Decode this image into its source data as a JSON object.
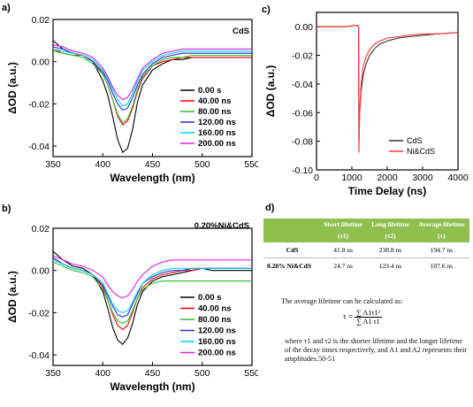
{
  "chart_data": [
    {
      "type": "line",
      "panel_label": "a)",
      "tag": "CdS",
      "xlabel": "Wavelength (nm)",
      "ylabel": "ΔOD (a.u.)",
      "xlim": [
        350,
        550
      ],
      "ylim": [
        -0.045,
        0.02
      ],
      "xticks": [
        "350",
        "400",
        "450",
        "500",
        "550"
      ],
      "yticks": [
        "0.02",
        "0.00",
        "-0.02",
        "-0.04"
      ],
      "legend_position": "right-middle",
      "series": [
        {
          "name": "0.00 s",
          "color": "#000000",
          "x": [
            350,
            360,
            370,
            380,
            390,
            400,
            405,
            410,
            415,
            420,
            425,
            430,
            435,
            440,
            450,
            460,
            470,
            480,
            490,
            500,
            510,
            520,
            530,
            540,
            550
          ],
          "y": [
            0.01,
            0.006,
            0.004,
            0.003,
            0.0,
            -0.009,
            -0.016,
            -0.026,
            -0.037,
            -0.043,
            -0.041,
            -0.032,
            -0.019,
            -0.011,
            -0.004,
            -0.001,
            0.001,
            0.001,
            0.002,
            0.002,
            0.002,
            0.002,
            0.002,
            0.002,
            0.002
          ]
        },
        {
          "name": "40.00 ns",
          "color": "#ff0000",
          "x": [
            350,
            360,
            370,
            380,
            390,
            400,
            405,
            410,
            415,
            420,
            425,
            430,
            435,
            440,
            450,
            460,
            470,
            480,
            490,
            500,
            510,
            520,
            530,
            540,
            550
          ],
          "y": [
            0.006,
            0.004,
            0.003,
            0.003,
            0.0,
            -0.006,
            -0.011,
            -0.018,
            -0.026,
            -0.03,
            -0.028,
            -0.022,
            -0.014,
            -0.008,
            -0.002,
            0.0,
            0.001,
            0.002,
            0.002,
            0.002,
            0.002,
            0.002,
            0.002,
            0.002,
            0.002
          ]
        },
        {
          "name": "80.00 ns",
          "color": "#2fbf2f",
          "x": [
            350,
            360,
            370,
            380,
            390,
            400,
            405,
            410,
            415,
            420,
            425,
            430,
            435,
            440,
            450,
            460,
            470,
            480,
            490,
            500,
            510,
            520,
            530,
            540,
            550
          ],
          "y": [
            0.005,
            0.004,
            0.003,
            0.002,
            -0.001,
            -0.006,
            -0.011,
            -0.018,
            -0.025,
            -0.029,
            -0.027,
            -0.021,
            -0.013,
            -0.007,
            -0.002,
            0.001,
            0.002,
            0.002,
            0.003,
            0.003,
            0.003,
            0.003,
            0.003,
            0.003,
            0.003
          ]
        },
        {
          "name": "120.00 ns",
          "color": "#2b2bd6",
          "x": [
            350,
            360,
            370,
            380,
            390,
            400,
            405,
            410,
            415,
            420,
            425,
            430,
            435,
            440,
            450,
            460,
            470,
            480,
            490,
            500,
            510,
            520,
            530,
            540,
            550
          ],
          "y": [
            0.007,
            0.006,
            0.004,
            0.003,
            0.0,
            -0.005,
            -0.009,
            -0.015,
            -0.02,
            -0.023,
            -0.022,
            -0.017,
            -0.011,
            -0.006,
            -0.001,
            0.002,
            0.003,
            0.004,
            0.004,
            0.004,
            0.004,
            0.004,
            0.004,
            0.004,
            0.004
          ]
        },
        {
          "name": "160.00 ns",
          "color": "#00d8f0",
          "x": [
            350,
            360,
            370,
            380,
            390,
            400,
            405,
            410,
            415,
            420,
            425,
            430,
            435,
            440,
            450,
            460,
            470,
            480,
            490,
            500,
            510,
            520,
            530,
            540,
            550
          ],
          "y": [
            0.006,
            0.005,
            0.004,
            0.003,
            0.001,
            -0.004,
            -0.008,
            -0.013,
            -0.018,
            -0.021,
            -0.02,
            -0.015,
            -0.009,
            -0.004,
            0.0,
            0.003,
            0.004,
            0.005,
            0.005,
            0.005,
            0.005,
            0.005,
            0.005,
            0.005,
            0.005
          ]
        },
        {
          "name": "200.00 ns",
          "color": "#e020e0",
          "x": [
            350,
            360,
            370,
            380,
            390,
            400,
            405,
            410,
            415,
            420,
            425,
            430,
            435,
            440,
            450,
            460,
            470,
            480,
            490,
            500,
            510,
            520,
            530,
            540,
            550
          ],
          "y": [
            0.008,
            0.007,
            0.005,
            0.004,
            0.002,
            -0.003,
            -0.007,
            -0.012,
            -0.016,
            -0.018,
            -0.017,
            -0.013,
            -0.008,
            -0.003,
            0.001,
            0.004,
            0.005,
            0.006,
            0.006,
            0.006,
            0.006,
            0.006,
            0.006,
            0.006,
            0.006
          ]
        }
      ]
    },
    {
      "type": "line",
      "panel_label": "b)",
      "tag": "0.20%Ni&CdS",
      "xlabel": "Wavelength (nm)",
      "ylabel": "ΔOD (a.u.)",
      "xlim": [
        350,
        550
      ],
      "ylim": [
        -0.045,
        0.02
      ],
      "xticks": [
        "350",
        "400",
        "450",
        "500",
        "550"
      ],
      "yticks": [
        "0.02",
        "0.00",
        "-0.02",
        "-0.04"
      ],
      "legend_position": "right-middle",
      "series": [
        {
          "name": "0.00 s",
          "color": "#000000",
          "x": [
            350,
            360,
            370,
            380,
            390,
            400,
            405,
            410,
            415,
            420,
            425,
            430,
            435,
            440,
            450,
            460,
            470,
            480,
            490,
            500,
            510,
            520,
            530,
            540,
            550
          ],
          "y": [
            0.009,
            0.005,
            0.002,
            0.001,
            -0.002,
            -0.01,
            -0.018,
            -0.027,
            -0.033,
            -0.035,
            -0.032,
            -0.025,
            -0.016,
            -0.01,
            -0.005,
            -0.003,
            -0.002,
            -0.001,
            0.0,
            0.001,
            0.0,
            0.0,
            0.0,
            0.0,
            0.0
          ]
        },
        {
          "name": "40.00 ns",
          "color": "#ff0000",
          "x": [
            350,
            360,
            370,
            380,
            390,
            400,
            405,
            410,
            415,
            420,
            425,
            430,
            435,
            440,
            450,
            460,
            470,
            480,
            490,
            500,
            510,
            520,
            530,
            540,
            550
          ],
          "y": [
            0.006,
            0.003,
            0.001,
            0.0,
            -0.002,
            -0.008,
            -0.014,
            -0.021,
            -0.026,
            -0.028,
            -0.026,
            -0.02,
            -0.013,
            -0.008,
            -0.004,
            -0.002,
            -0.001,
            0.0,
            0.0,
            0.001,
            0.001,
            0.001,
            0.001,
            0.001,
            0.001
          ]
        },
        {
          "name": "80.00 ns",
          "color": "#2fbf2f",
          "x": [
            350,
            360,
            370,
            380,
            390,
            400,
            405,
            410,
            415,
            420,
            425,
            430,
            435,
            440,
            450,
            460,
            470,
            480,
            490,
            500,
            510,
            520,
            530,
            540,
            550
          ],
          "y": [
            0.004,
            0.002,
            0.0,
            -0.001,
            -0.003,
            -0.009,
            -0.014,
            -0.02,
            -0.024,
            -0.025,
            -0.024,
            -0.019,
            -0.013,
            -0.009,
            -0.006,
            -0.005,
            -0.005,
            -0.005,
            -0.005,
            -0.005,
            -0.005,
            -0.005,
            -0.005,
            -0.005,
            -0.005
          ]
        },
        {
          "name": "120.00 ns",
          "color": "#2b2bd6",
          "x": [
            350,
            360,
            370,
            380,
            390,
            400,
            405,
            410,
            415,
            420,
            425,
            430,
            435,
            440,
            450,
            460,
            470,
            480,
            490,
            500,
            510,
            520,
            530,
            540,
            550
          ],
          "y": [
            0.006,
            0.003,
            0.001,
            0.0,
            -0.002,
            -0.007,
            -0.012,
            -0.017,
            -0.021,
            -0.022,
            -0.021,
            -0.016,
            -0.011,
            -0.006,
            -0.003,
            -0.001,
            0.0,
            0.0,
            0.001,
            0.001,
            0.001,
            0.001,
            0.001,
            0.001,
            0.001
          ]
        },
        {
          "name": "160.00 ns",
          "color": "#00d8f0",
          "x": [
            350,
            360,
            370,
            380,
            390,
            400,
            405,
            410,
            415,
            420,
            425,
            430,
            435,
            440,
            450,
            460,
            470,
            480,
            490,
            500,
            510,
            520,
            530,
            540,
            550
          ],
          "y": [
            0.005,
            0.003,
            0.001,
            0.0,
            -0.002,
            -0.006,
            -0.011,
            -0.016,
            -0.019,
            -0.02,
            -0.019,
            -0.015,
            -0.01,
            -0.006,
            -0.002,
            0.0,
            0.001,
            0.001,
            0.001,
            0.001,
            0.001,
            0.001,
            0.001,
            0.001,
            0.001
          ]
        },
        {
          "name": "200.00 ns",
          "color": "#e020e0",
          "x": [
            350,
            360,
            370,
            380,
            390,
            400,
            405,
            410,
            415,
            420,
            425,
            430,
            435,
            440,
            450,
            460,
            470,
            480,
            490,
            500,
            510,
            520,
            530,
            540,
            550
          ],
          "y": [
            0.007,
            0.005,
            0.003,
            0.002,
            0.0,
            -0.003,
            -0.007,
            -0.01,
            -0.012,
            -0.013,
            -0.012,
            -0.009,
            -0.005,
            -0.002,
            0.002,
            0.004,
            0.005,
            0.005,
            0.005,
            0.005,
            0.005,
            0.005,
            0.005,
            0.005,
            0.005
          ]
        }
      ]
    },
    {
      "type": "line",
      "panel_label": "c)",
      "xlabel": "Time Delay (ns)",
      "ylabel": "ΔOD (a.u.)",
      "xlim": [
        0,
        4000
      ],
      "ylim": [
        -0.1,
        0.01
      ],
      "xticks": [
        "0",
        "1000",
        "2000",
        "3000",
        "4000"
      ],
      "yticks": [
        "0.00",
        "-0.02",
        "-0.04",
        "-0.06",
        "-0.08",
        "-0.10"
      ],
      "legend_position": "bottom-right",
      "series": [
        {
          "name": "CdS",
          "color": "#333333",
          "x": [
            0,
            400,
            800,
            1150,
            1190,
            1200,
            1220,
            1260,
            1320,
            1400,
            1500,
            1650,
            1800,
            2000,
            2300,
            2600,
            3000,
            3400,
            4000
          ],
          "y": [
            0.0,
            0.0,
            0.0,
            0.001,
            0.0,
            -0.08,
            -0.06,
            -0.045,
            -0.034,
            -0.026,
            -0.02,
            -0.015,
            -0.012,
            -0.01,
            -0.008,
            -0.007,
            -0.006,
            -0.005,
            -0.004
          ]
        },
        {
          "name": "Ni&CdS",
          "color": "#ff3333",
          "x": [
            0,
            400,
            800,
            1150,
            1190,
            1200,
            1220,
            1260,
            1320,
            1400,
            1500,
            1650,
            1800,
            2000,
            2300,
            2600,
            3000,
            3400,
            4000
          ],
          "y": [
            0.0,
            0.0,
            0.0,
            0.001,
            0.0,
            -0.088,
            -0.06,
            -0.04,
            -0.028,
            -0.021,
            -0.016,
            -0.012,
            -0.01,
            -0.008,
            -0.007,
            -0.006,
            -0.005,
            -0.005,
            -0.004
          ]
        }
      ]
    }
  ],
  "panel_d": {
    "label": "d)",
    "table": {
      "headers": [
        "",
        "Short lifetime",
        "Long lifetime",
        "Average lifetime"
      ],
      "subheaders": [
        "",
        "(τ1)",
        "(τ2)",
        "(τ)"
      ],
      "rows": [
        [
          "CdS",
          "41.8 ns",
          "238.8 ns",
          "194.7 ns"
        ],
        [
          "0.20% Ni&CdS",
          "24.7 ns",
          "123.4 ns",
          "107.6 ns"
        ]
      ]
    },
    "note_intro": "The average lifetime can be calculated as:",
    "formula_lhs": "τ =",
    "formula_num": "∑ A1τ1²",
    "formula_den": "∑ A1 τ1",
    "note_body": "where τ1 and τ2 is the shorter lifetime and the longer lifetime of the decay times respectively, and A1 and A2 represents their amplitudes.50-51"
  }
}
